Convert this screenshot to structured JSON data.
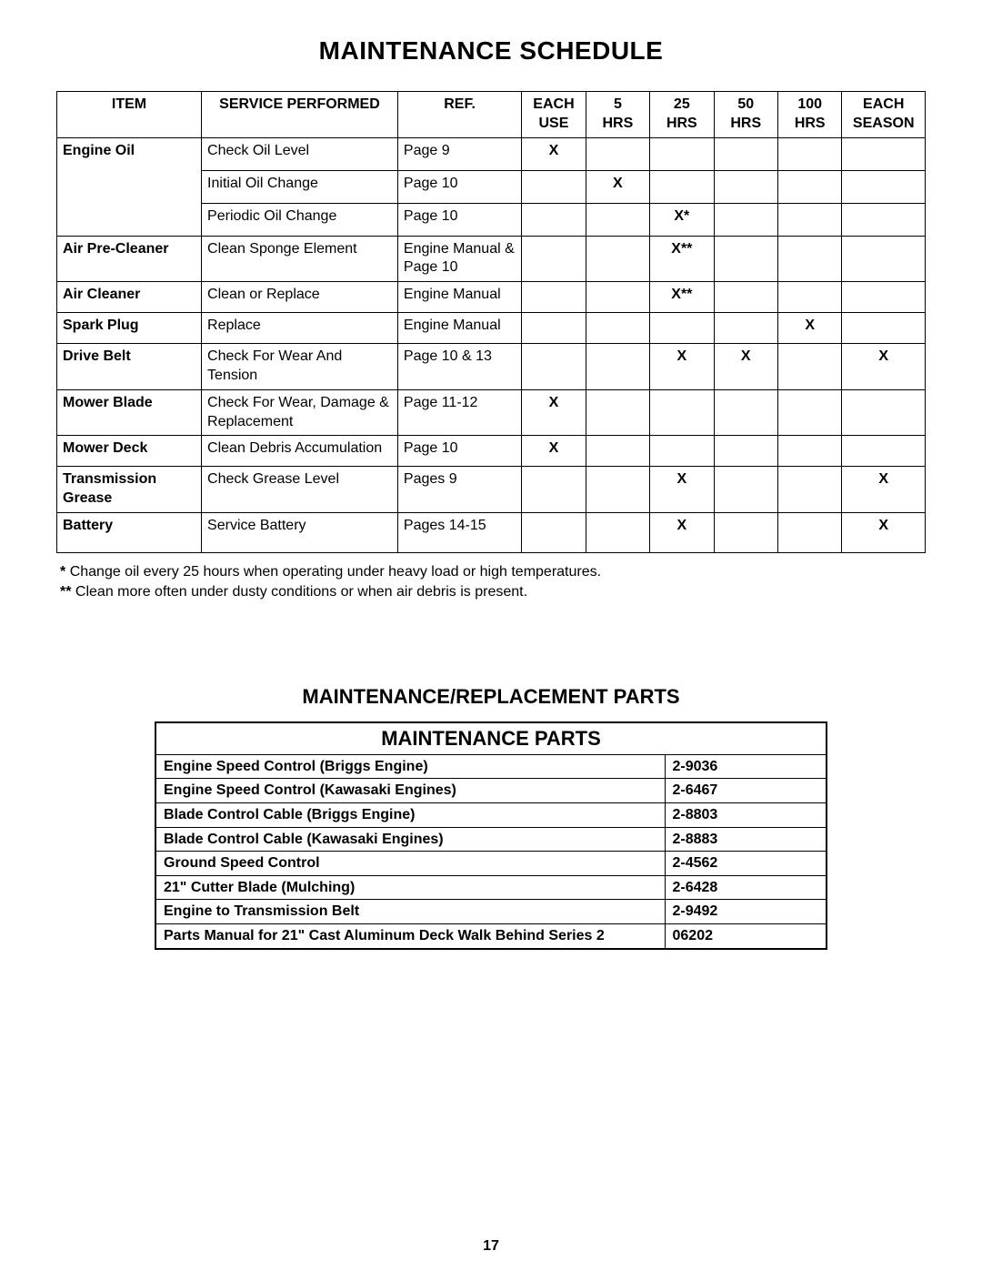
{
  "title": "MAINTENANCE SCHEDULE",
  "schedule": {
    "headers": {
      "item": "ITEM",
      "service": "SERVICE PERFORMED",
      "ref": "REF.",
      "each_use_l1": "EACH",
      "each_use_l2": "USE",
      "h5_l1": "5",
      "h5_l2": "HRS",
      "h25_l1": "25",
      "h25_l2": "HRS",
      "h50_l1": "50",
      "h50_l2": "HRS",
      "h100_l1": "100",
      "h100_l2": "HRS",
      "season_l1": "EACH",
      "season_l2": "SEASON"
    },
    "rows": [
      {
        "item": "Engine Oil",
        "service": "Check Oil Level",
        "ref": "Page 9",
        "marks": [
          "X",
          "",
          "",
          "",
          "",
          ""
        ]
      },
      {
        "item": "",
        "service": "Initial Oil Change",
        "ref": "Page 10",
        "marks": [
          "",
          "X",
          "",
          "",
          "",
          ""
        ]
      },
      {
        "item": "",
        "service": "Periodic Oil Change",
        "ref": "Page 10",
        "marks": [
          "",
          "",
          "X*",
          "",
          "",
          ""
        ]
      },
      {
        "item": "Air Pre-Cleaner",
        "service": "Clean Sponge Element",
        "ref": "Engine Manual & Page 10",
        "marks": [
          "",
          "",
          "X**",
          "",
          "",
          ""
        ]
      },
      {
        "item": "Air Cleaner",
        "service": "Clean or Replace",
        "ref": "Engine Manual",
        "marks": [
          "",
          "",
          "X**",
          "",
          "",
          ""
        ]
      },
      {
        "item": "Spark Plug",
        "service": "Replace",
        "ref": "Engine Manual",
        "marks": [
          "",
          "",
          "",
          "",
          "X",
          ""
        ]
      },
      {
        "item": "Drive Belt",
        "service": "Check For Wear And Tension",
        "ref": "Page 10 & 13",
        "marks": [
          "",
          "",
          "X",
          "X",
          "",
          "X"
        ]
      },
      {
        "item": "Mower Blade",
        "service": "Check For Wear, Damage & Replacement",
        "ref": "Page 11-12",
        "marks": [
          "X",
          "",
          "",
          "",
          "",
          ""
        ]
      },
      {
        "item": "Mower Deck",
        "service": "Clean Debris Accumulation",
        "ref": "Page 10",
        "marks": [
          "X",
          "",
          "",
          "",
          "",
          ""
        ]
      },
      {
        "item": "Transmission Grease",
        "service": "Check Grease Level",
        "ref": "Pages 9",
        "marks": [
          "",
          "",
          "X",
          "",
          "",
          "X"
        ]
      },
      {
        "item": "Battery",
        "service": "Service Battery",
        "ref": "Pages 14-15",
        "marks": [
          "",
          "",
          "X",
          "",
          "",
          "X"
        ]
      }
    ]
  },
  "footnotes": {
    "n1_sym": "*",
    "n1_text": " Change oil every 25 hours when operating under heavy load or high temperatures.",
    "n2_sym": "**",
    "n2_text": "Clean more often under dusty conditions or when air debris is present."
  },
  "parts_subtitle": "MAINTENANCE/REPLACEMENT PARTS",
  "parts_title": "MAINTENANCE PARTS",
  "parts": [
    {
      "name": "Engine Speed Control (Briggs Engine)",
      "num": "2-9036"
    },
    {
      "name": "Engine Speed Control (Kawasaki Engines)",
      "num": "2-6467"
    },
    {
      "name": "Blade Control Cable (Briggs Engine)",
      "num": "2-8803"
    },
    {
      "name": "Blade Control Cable (Kawasaki Engines)",
      "num": "2-8883"
    },
    {
      "name": "Ground Speed Control",
      "num": "2-4562"
    },
    {
      "name": "21\" Cutter Blade (Mulching)",
      "num": "2-6428"
    },
    {
      "name": "Engine to Transmission Belt",
      "num": "2-9492"
    },
    {
      "name": "Parts Manual for  21\" Cast Aluminum Deck Walk Behind Series 2",
      "num": "06202"
    }
  ],
  "page_number": "17"
}
